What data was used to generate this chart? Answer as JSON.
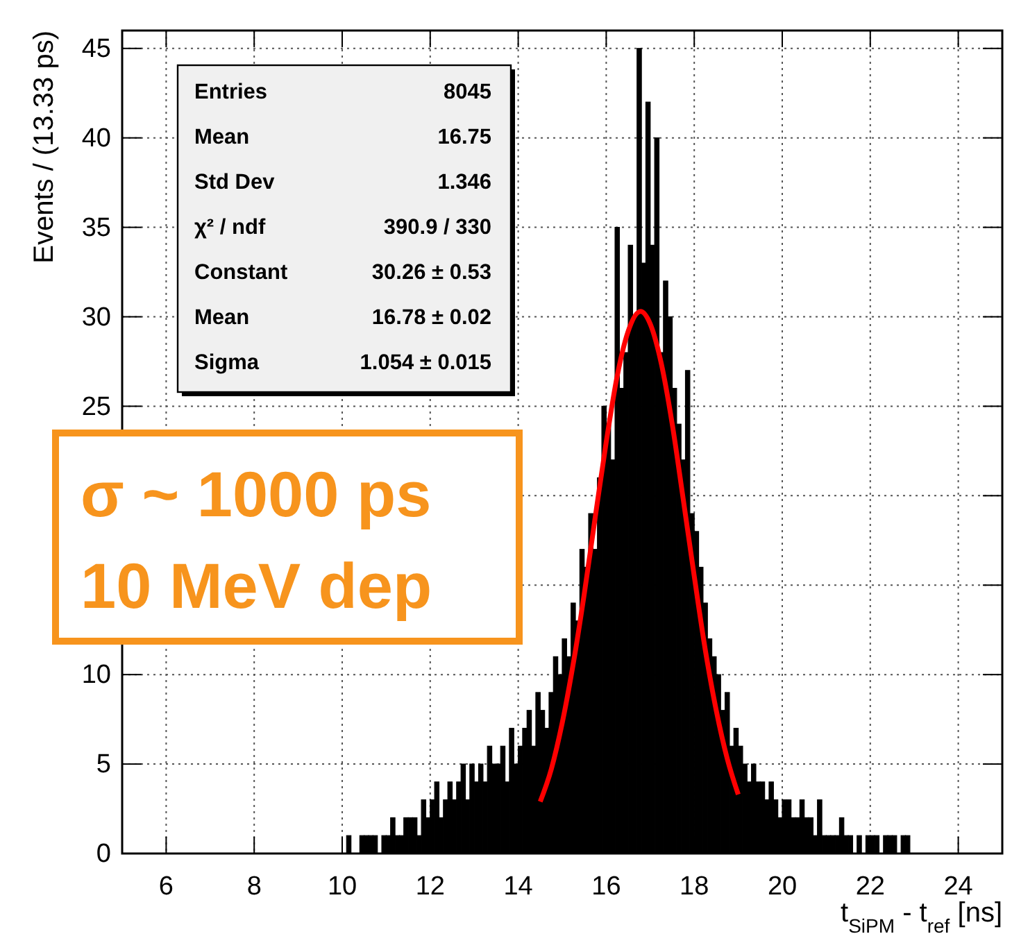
{
  "chart_data": {
    "type": "histogram",
    "xlabel": "t$_{SiPM}$ - t$_{ref}$ [ns]",
    "ylabel": "Events / (13.33 ps)",
    "xlim": [
      5,
      25
    ],
    "xticks": [
      6,
      8,
      10,
      12,
      14,
      16,
      18,
      20,
      22,
      24
    ],
    "ylim": [
      0,
      46
    ],
    "yticks": [
      0,
      5,
      10,
      {
        "value": 15,
        "label": null
      },
      {
        "value": 20,
        "label": null
      },
      25,
      30,
      35,
      40,
      45
    ],
    "grid": true,
    "color": "#000000",
    "bins": [
      10.0,
      10.1,
      10.2,
      10.3,
      10.4,
      10.5,
      10.6,
      10.7,
      10.8,
      10.9,
      11.0,
      11.1,
      11.2,
      11.3,
      11.4,
      11.5,
      11.6,
      11.7,
      11.8,
      11.9,
      12.0,
      12.1,
      12.2,
      12.3,
      12.4,
      12.5,
      12.6,
      12.7,
      12.8,
      12.9,
      13.0,
      13.1,
      13.2,
      13.3,
      13.4,
      13.5,
      13.6,
      13.7,
      13.8,
      13.9,
      14.0,
      14.1,
      14.2,
      14.3,
      14.4,
      14.5,
      14.6,
      14.7,
      14.8,
      14.9,
      15.0,
      15.1,
      15.2,
      15.3,
      15.4,
      15.5,
      15.6,
      15.7,
      15.8,
      15.9,
      16.0,
      16.1,
      16.2,
      16.3,
      16.4,
      16.5,
      16.6,
      16.7,
      16.8,
      16.9,
      17.0,
      17.1,
      17.2,
      17.3,
      17.4,
      17.5,
      17.6,
      17.7,
      17.8,
      17.9,
      18.0,
      18.1,
      18.2,
      18.3,
      18.4,
      18.5,
      18.6,
      18.7,
      18.8,
      18.9,
      19.0,
      19.1,
      19.2,
      19.3,
      19.4,
      19.5,
      19.6,
      19.7,
      19.8,
      19.9,
      20.0,
      20.1,
      20.2,
      20.3,
      20.4,
      20.5,
      20.6,
      20.7,
      20.8,
      20.9,
      21.0,
      21.1,
      21.2,
      21.3,
      21.4,
      21.5,
      21.6,
      21.7,
      21.8,
      21.9,
      22.0,
      22.1,
      22.2,
      22.3,
      22.4,
      22.5,
      22.6,
      22.7,
      22.8,
      22.9,
      23.0
    ],
    "values": [
      0,
      1,
      0,
      0,
      1,
      1,
      1,
      1,
      0,
      1,
      1,
      2,
      1,
      1,
      2,
      2,
      2,
      1,
      3,
      2,
      3,
      4,
      2,
      3,
      4,
      3,
      4,
      5,
      3,
      5,
      4,
      5,
      4,
      6,
      5,
      5,
      6,
      4,
      7,
      5,
      6,
      7,
      8,
      6,
      9,
      8,
      7,
      9,
      11,
      10,
      12,
      11,
      14,
      13,
      17,
      16,
      19,
      17,
      21,
      25,
      24,
      22,
      35,
      26,
      28,
      34,
      30,
      45,
      33,
      42,
      34,
      40,
      28,
      32,
      30,
      26,
      24,
      22,
      27,
      19,
      18,
      16,
      14,
      12,
      11,
      10,
      8,
      9,
      6,
      7,
      6,
      5,
      4,
      5,
      4,
      4,
      3,
      4,
      3,
      2,
      3,
      3,
      2,
      2,
      3,
      2,
      2,
      1,
      3,
      1,
      1,
      1,
      1,
      2,
      1,
      1,
      0,
      1,
      0,
      1,
      1,
      1,
      0,
      1,
      1,
      1,
      0,
      1,
      1,
      0
    ],
    "series": [
      {
        "type": "line",
        "color": "#ff0000",
        "x": [
          14.5,
          14.75,
          15.0,
          15.25,
          15.5,
          15.75,
          16.0,
          16.25,
          16.5,
          16.78,
          17.0,
          17.25,
          17.5,
          17.75,
          18.0,
          18.25,
          18.5,
          18.75,
          19.0
        ],
        "values": [
          2.9,
          4.7,
          7.3,
          10.6,
          14.5,
          18.8,
          23.0,
          26.7,
          29.2,
          30.3,
          29.6,
          27.4,
          24.0,
          19.8,
          15.5,
          11.4,
          8.0,
          5.3,
          3.3
        ]
      }
    ],
    "annotations": [
      "Entries",
      "8045",
      "Mean",
      "16.75",
      "Std Dev",
      "1.346",
      "χ² / ndf",
      "390.9 / 330",
      "Constant",
      "30.26 ± 0.53",
      "Mean",
      "16.78 ± 0.02",
      "Sigma",
      "1.054 ± 0.015",
      "σ ~ 1000 ps",
      "10 MeV dep"
    ]
  }
}
